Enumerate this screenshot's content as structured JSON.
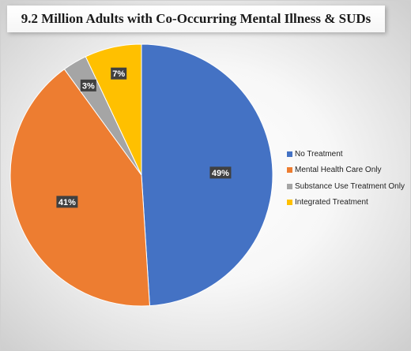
{
  "chart_data": {
    "type": "pie",
    "title": "9.2 Million Adults with Co-Occurring Mental Illness & SUDs",
    "categories": [
      "No Treatment",
      "Mental Health Care Only",
      "Substance Use Treatment Only",
      "Integrated Treatment"
    ],
    "values": [
      49,
      41,
      3,
      7
    ],
    "data_labels": [
      "49%",
      "41%",
      "3%",
      "7%"
    ],
    "colors": [
      "#4472C4",
      "#ED7D31",
      "#A5A5A5",
      "#FFC000"
    ],
    "start": "12 o'clock",
    "direction": "clockwise",
    "legend_position": "right"
  }
}
